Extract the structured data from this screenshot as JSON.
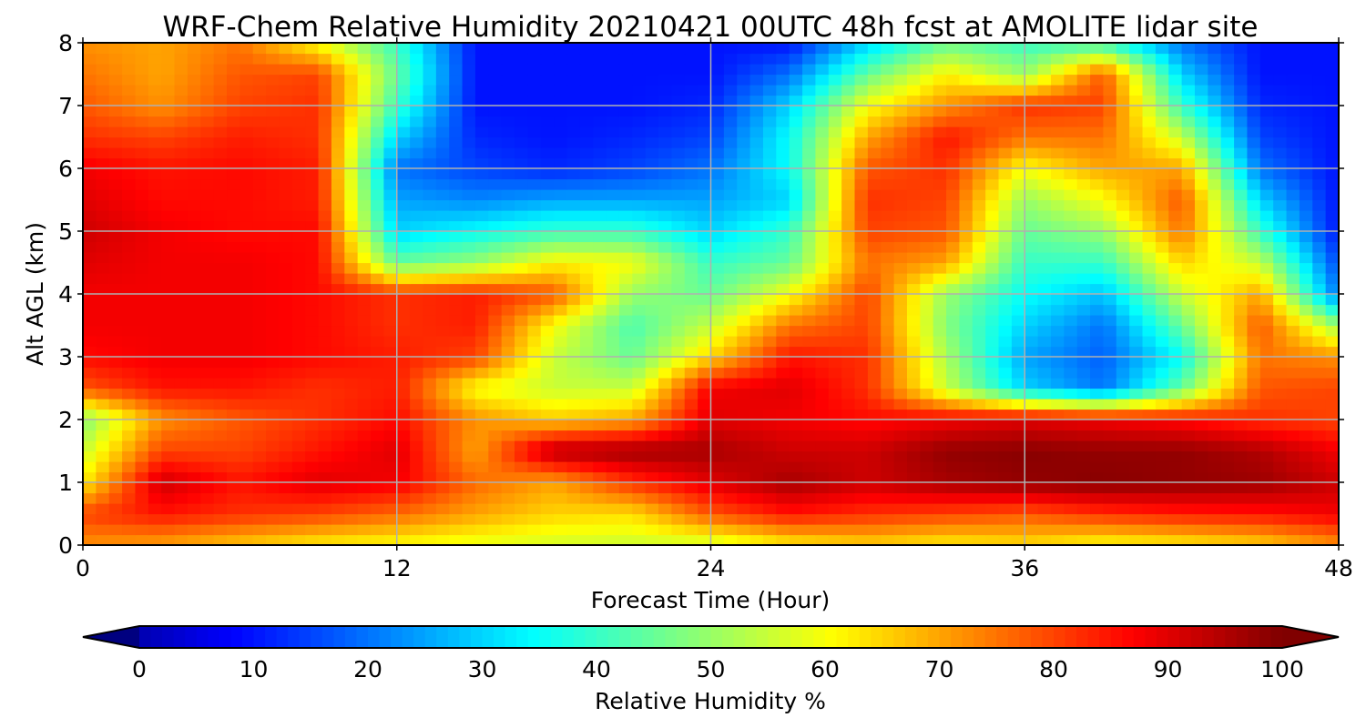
{
  "chart_data": {
    "type": "heatmap",
    "title": "WRF-Chem Relative Humidity 20210421 00UTC 48h fcst at AMOLITE lidar site",
    "xlabel": "Forecast Time (Hour)",
    "ylabel": "Alt AGL (km)",
    "xlim": [
      0,
      48
    ],
    "ylim": [
      0,
      8
    ],
    "x_ticks": [
      "0",
      "12",
      "24",
      "36",
      "48"
    ],
    "y_ticks": [
      "0",
      "1",
      "2",
      "3",
      "4",
      "5",
      "6",
      "7",
      "8"
    ],
    "grid": true,
    "x_hours": [
      0,
      3,
      6,
      9,
      12,
      15,
      18,
      21,
      24,
      27,
      30,
      33,
      36,
      39,
      42,
      45,
      48
    ],
    "altitudes_km": [
      0,
      0.5,
      1,
      1.5,
      2,
      2.5,
      3,
      3.5,
      4,
      4.5,
      5,
      5.5,
      6,
      6.5,
      7,
      7.5,
      8
    ],
    "rh_percent": [
      [
        72,
        70,
        66,
        62,
        60,
        58,
        56,
        55,
        55,
        62,
        65,
        62,
        64,
        60,
        62,
        65,
        72
      ],
      [
        80,
        85,
        82,
        80,
        76,
        70,
        65,
        64,
        78,
        85,
        82,
        80,
        78,
        82,
        84,
        85,
        88
      ],
      [
        62,
        92,
        85,
        90,
        88,
        76,
        70,
        82,
        90,
        96,
        92,
        96,
        98,
        99,
        98,
        97,
        92
      ],
      [
        55,
        80,
        80,
        85,
        90,
        70,
        95,
        97,
        96,
        92,
        92,
        98,
        99,
        98,
        98,
        95,
        88
      ],
      [
        48,
        72,
        78,
        82,
        86,
        72,
        66,
        70,
        90,
        88,
        86,
        88,
        90,
        88,
        86,
        82,
        80
      ],
      [
        78,
        85,
        85,
        82,
        84,
        60,
        55,
        55,
        88,
        90,
        82,
        55,
        30,
        20,
        45,
        78,
        80
      ],
      [
        86,
        88,
        88,
        86,
        84,
        80,
        55,
        45,
        65,
        85,
        82,
        52,
        25,
        18,
        35,
        75,
        72
      ],
      [
        88,
        88,
        88,
        86,
        82,
        84,
        60,
        42,
        55,
        75,
        80,
        48,
        30,
        20,
        45,
        78,
        50
      ],
      [
        88,
        88,
        88,
        86,
        82,
        84,
        78,
        50,
        45,
        60,
        80,
        50,
        35,
        28,
        55,
        70,
        20
      ],
      [
        90,
        88,
        88,
        86,
        45,
        50,
        62,
        60,
        40,
        45,
        75,
        70,
        40,
        40,
        65,
        55,
        15
      ],
      [
        92,
        88,
        86,
        86,
        30,
        35,
        40,
        40,
        30,
        40,
        80,
        78,
        45,
        50,
        75,
        40,
        10
      ],
      [
        90,
        86,
        86,
        84,
        25,
        22,
        25,
        25,
        25,
        30,
        82,
        80,
        50,
        60,
        78,
        30,
        10
      ],
      [
        88,
        85,
        86,
        84,
        20,
        15,
        12,
        15,
        20,
        35,
        78,
        82,
        60,
        70,
        70,
        20,
        10
      ],
      [
        82,
        80,
        84,
        82,
        30,
        12,
        10,
        12,
        15,
        35,
        70,
        85,
        75,
        75,
        55,
        15,
        10
      ],
      [
        78,
        72,
        80,
        82,
        40,
        10,
        10,
        10,
        12,
        30,
        60,
        72,
        82,
        80,
        40,
        12,
        10
      ],
      [
        75,
        70,
        78,
        80,
        45,
        10,
        10,
        10,
        10,
        20,
        45,
        62,
        50,
        78,
        30,
        10,
        10
      ],
      [
        72,
        70,
        75,
        60,
        40,
        10,
        10,
        10,
        10,
        10,
        30,
        45,
        40,
        40,
        20,
        10,
        10
      ]
    ],
    "colorbar": {
      "label": "Relative Humidity %",
      "ticks": [
        "0",
        "10",
        "20",
        "30",
        "40",
        "50",
        "60",
        "70",
        "80",
        "90",
        "100"
      ],
      "min": -5,
      "max": 100,
      "extend": "both",
      "colormap": "jet"
    }
  }
}
